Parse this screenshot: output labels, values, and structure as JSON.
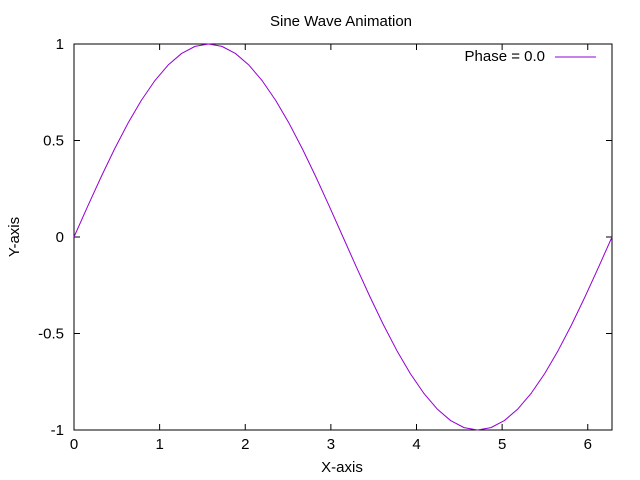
{
  "chart_data": {
    "type": "line",
    "title": "Sine Wave Animation",
    "xlabel": "X-axis",
    "ylabel": "Y-axis",
    "xlim": [
      0,
      6.283185307179586
    ],
    "ylim": [
      -1,
      1
    ],
    "x_ticks": [
      0,
      1,
      2,
      3,
      4,
      5,
      6
    ],
    "x_tick_labels": [
      "0",
      "1",
      "2",
      "3",
      "4",
      "5",
      "6"
    ],
    "y_ticks": [
      1,
      0.5,
      0,
      -0.5,
      -1
    ],
    "y_tick_labels": [
      "1",
      "0.5",
      "0",
      "-0.5",
      "-1"
    ],
    "grid": false,
    "legend_position": "top-right",
    "series": [
      {
        "name": "Phase = 0.0",
        "color": "#9400d3",
        "x": [
          0,
          0.1571,
          0.3142,
          0.4712,
          0.6283,
          0.7854,
          0.9425,
          1.0996,
          1.2566,
          1.4137,
          1.5708,
          1.7279,
          1.885,
          2.042,
          2.1991,
          2.3562,
          2.5133,
          2.6704,
          2.8274,
          2.9845,
          3.1416,
          3.2987,
          3.4558,
          3.6128,
          3.7699,
          3.927,
          4.0841,
          4.2412,
          4.3982,
          4.5553,
          4.7124,
          4.8695,
          5.0265,
          5.1836,
          5.3407,
          5.4978,
          5.6549,
          5.8119,
          5.969,
          6.1261,
          6.2832
        ],
        "y": [
          0,
          0.1564,
          0.309,
          0.454,
          0.5878,
          0.7071,
          0.809,
          0.891,
          0.9511,
          0.9877,
          1,
          0.9877,
          0.9511,
          0.891,
          0.809,
          0.7071,
          0.5878,
          0.454,
          0.309,
          0.1564,
          0,
          -0.1564,
          -0.309,
          -0.454,
          -0.5878,
          -0.7071,
          -0.809,
          -0.891,
          -0.9511,
          -0.9877,
          -1,
          -0.9877,
          -0.9511,
          -0.891,
          -0.809,
          -0.7071,
          -0.5878,
          -0.454,
          -0.309,
          -0.1564,
          0
        ]
      }
    ]
  }
}
